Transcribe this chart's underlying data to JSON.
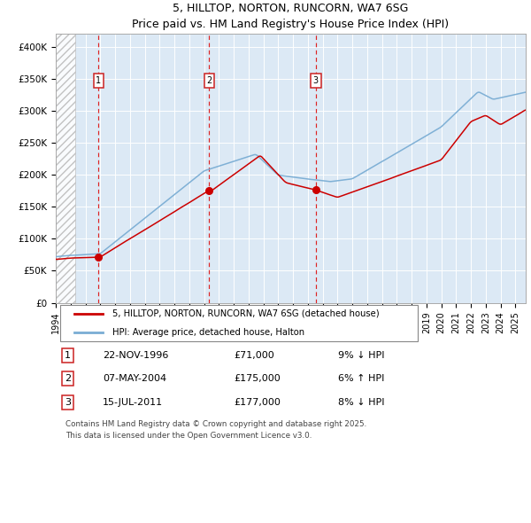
{
  "title": "5, HILLTOP, NORTON, RUNCORN, WA7 6SG",
  "subtitle": "Price paid vs. HM Land Registry's House Price Index (HPI)",
  "ylim": [
    0,
    420000
  ],
  "yticks": [
    0,
    50000,
    100000,
    150000,
    200000,
    250000,
    300000,
    350000,
    400000
  ],
  "ytick_labels": [
    "£0",
    "£50K",
    "£100K",
    "£150K",
    "£200K",
    "£250K",
    "£300K",
    "£350K",
    "£400K"
  ],
  "xlim_start": 1994.0,
  "xlim_end": 2025.7,
  "hpi_color": "#7aadd4",
  "price_color": "#cc0000",
  "sale1_date": 1996.89,
  "sale1_price": 71000,
  "sale2_date": 2004.35,
  "sale2_price": 175000,
  "sale3_date": 2011.54,
  "sale3_price": 177000,
  "plot_bg_color": "#dce9f5",
  "legend_label_red": "5, HILLTOP, NORTON, RUNCORN, WA7 6SG (detached house)",
  "legend_label_blue": "HPI: Average price, detached house, Halton",
  "table_rows": [
    [
      "1",
      "22-NOV-1996",
      "£71,000",
      "9% ↓ HPI"
    ],
    [
      "2",
      "07-MAY-2004",
      "£175,000",
      "6% ↑ HPI"
    ],
    [
      "3",
      "15-JUL-2011",
      "£177,000",
      "8% ↓ HPI"
    ]
  ],
  "footer_text": "Contains HM Land Registry data © Crown copyright and database right 2025.\nThis data is licensed under the Open Government Licence v3.0.",
  "grid_color": "#ffffff",
  "vline_color": "#dd2222"
}
